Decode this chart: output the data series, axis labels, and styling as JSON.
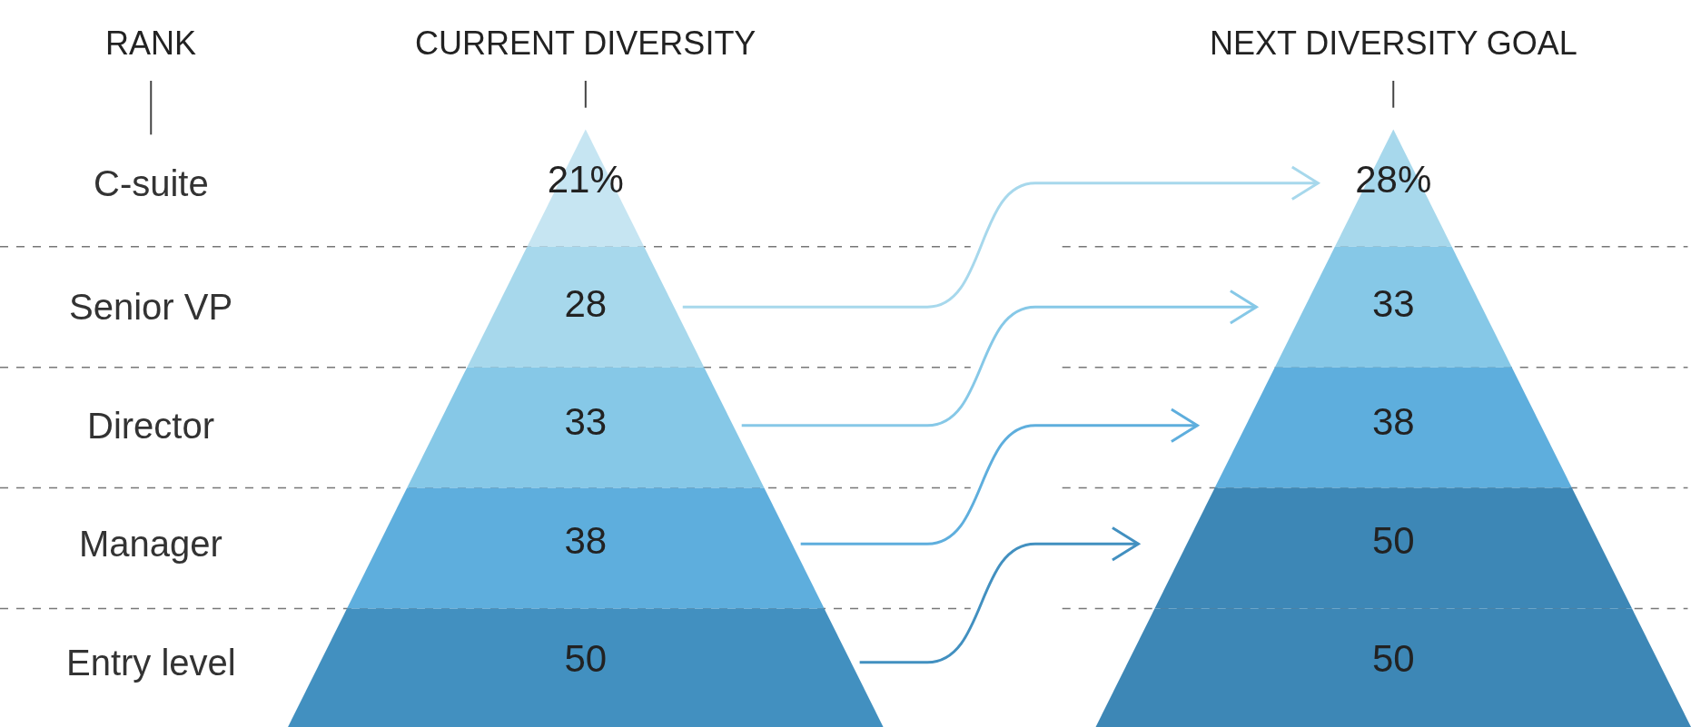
{
  "chart_data": {
    "type": "other",
    "ylabel": "RANK",
    "categories": [
      "C-suite",
      "Senior VP",
      "Director",
      "Manager",
      "Entry level"
    ],
    "series": [
      {
        "name": "CURRENT DIVERSITY",
        "values": [
          21,
          28,
          33,
          38,
          50
        ],
        "value_labels": [
          "21%",
          "28",
          "33",
          "38",
          "50"
        ],
        "colors": [
          "#c6e5f2",
          "#a7d8ec",
          "#86c8e7",
          "#5eaedd",
          "#4290c0"
        ]
      },
      {
        "name": "NEXT DIVERSITY GOAL",
        "values": [
          28,
          33,
          38,
          50,
          50
        ],
        "value_labels": [
          "28%",
          "33",
          "38",
          "50",
          "50"
        ],
        "colors": [
          "#a7d8ec",
          "#86c8e7",
          "#5eaedd",
          "#3d87b6",
          "#3d87b6"
        ]
      }
    ]
  }
}
